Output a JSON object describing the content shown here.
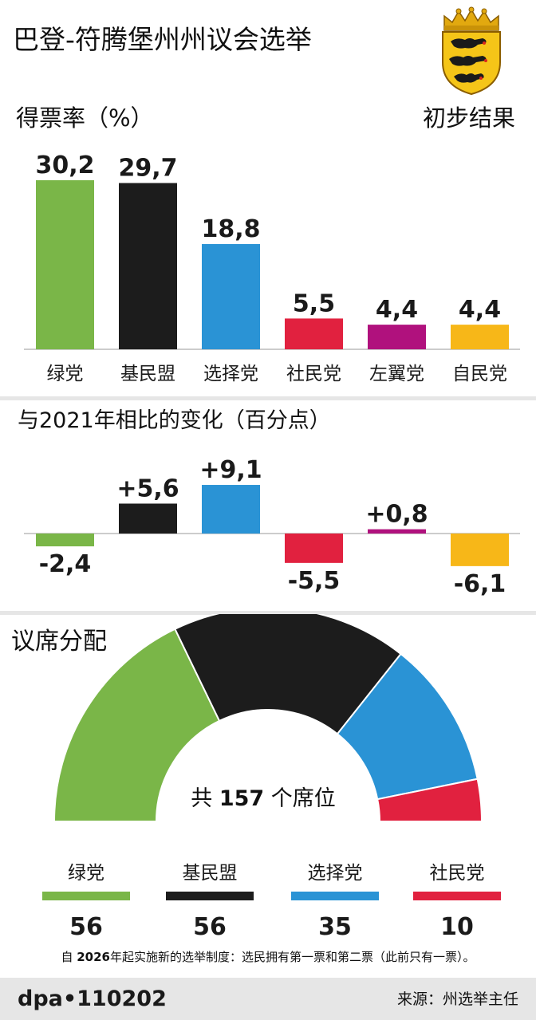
{
  "header": {
    "title": "巴登-符腾堡州州议会选举",
    "subtitle": "得票率（%）",
    "status": "初步结果"
  },
  "colors": {
    "green": "#7ab648",
    "black": "#1c1c1c",
    "blue": "#2a93d5",
    "red": "#e1213f",
    "purple": "#b0117d",
    "yellow": "#f7b718",
    "divider": "#e6e6e6",
    "axis": "#cccccc"
  },
  "sections": {
    "change_title": "与2021年相比的变化（百分点）",
    "seats_title": "议席分配",
    "total_seats_prefix": "共",
    "total_seats_number": "157",
    "total_seats_suffix": "个席位"
  },
  "chart_data": [
    {
      "type": "bar",
      "categories": [
        "绿党",
        "基民盟",
        "选择党",
        "社民党",
        "左翼党",
        "自民党"
      ],
      "values": [
        30.2,
        29.7,
        18.8,
        5.5,
        4.4,
        4.4
      ],
      "value_labels": [
        "30,2",
        "29,7",
        "18,8",
        "5,5",
        "4,4",
        "4,4"
      ],
      "colors": [
        "#7ab648",
        "#1c1c1c",
        "#2a93d5",
        "#e1213f",
        "#b0117d",
        "#f7b718"
      ],
      "title": "得票率（%）",
      "ylim": [
        0,
        30.2
      ],
      "grid": false
    },
    {
      "type": "bar",
      "categories": [
        "绿党",
        "基民盟",
        "选择党",
        "社民党",
        "左翼党",
        "自民党"
      ],
      "values": [
        -2.4,
        5.6,
        9.1,
        -5.5,
        0.8,
        -6.1
      ],
      "value_labels": [
        "-2,4",
        "+5,6",
        "+9,1",
        "-5,5",
        "+0,8",
        "-6,1"
      ],
      "colors": [
        "#7ab648",
        "#1c1c1c",
        "#2a93d5",
        "#e1213f",
        "#b0117d",
        "#f7b718"
      ],
      "title": "与2021年相比的变化（百分点）",
      "grid": false
    },
    {
      "type": "pie",
      "title": "议席分配",
      "categories": [
        "绿党",
        "基民盟",
        "选择党",
        "社民党"
      ],
      "values": [
        56,
        56,
        35,
        10
      ],
      "colors": [
        "#7ab648",
        "#1c1c1c",
        "#2a93d5",
        "#e1213f"
      ],
      "total": 157
    }
  ],
  "footnote": {
    "prefix": "自 ",
    "year": "2026",
    "text": "年起实施新的选举制度：选民拥有第一票和第二票（此前只有一票）。"
  },
  "footer": {
    "agency": "dpa•110202",
    "source": "来源：州选举主任"
  }
}
